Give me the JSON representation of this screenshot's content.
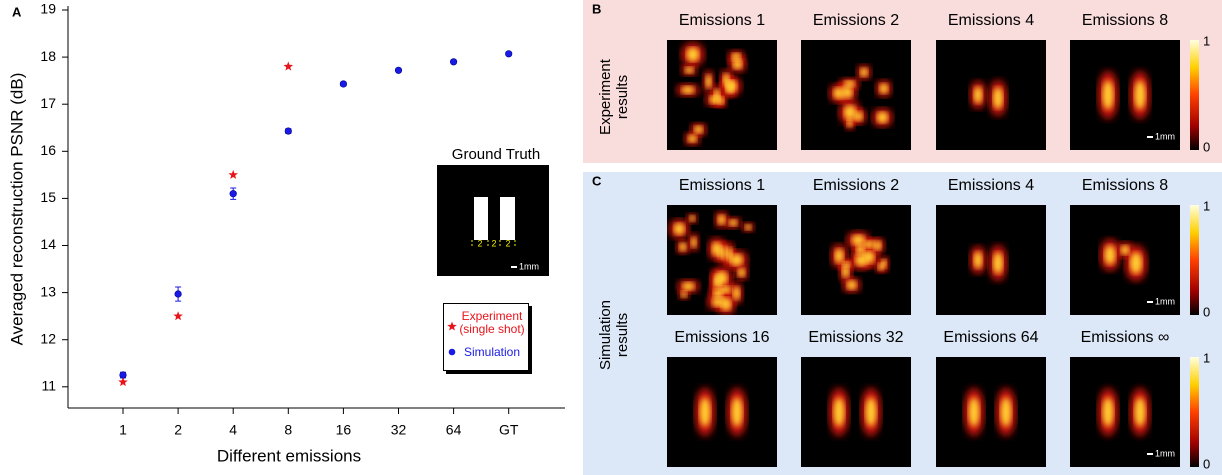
{
  "chart_data": {
    "type": "scatter",
    "x_label": "Different emissions",
    "y_label": "Averaged reconstruction PSNR (dB)",
    "panel_label": "A",
    "categories": [
      "1",
      "2",
      "4",
      "8",
      "16",
      "32",
      "64",
      "GT"
    ],
    "series": [
      {
        "name": "Experiment (single shot)",
        "color": "#e8141b",
        "marker": "star",
        "values": [
          11.1,
          12.5,
          15.5,
          17.8,
          null,
          null,
          null,
          null
        ]
      },
      {
        "name": "Simulation",
        "color": "#1a1ae6",
        "marker": "circle",
        "values": [
          11.25,
          12.97,
          15.1,
          16.43,
          17.43,
          17.72,
          17.9,
          18.07
        ],
        "errors": [
          0.06,
          0.15,
          0.12,
          0.05,
          0.04,
          0.03,
          0.03,
          0.03
        ]
      }
    ],
    "ylim": [
      10.55,
      19
    ],
    "yticks": [
      11,
      12,
      13,
      14,
      15,
      16,
      17,
      18,
      19
    ],
    "inset": {
      "title": "Ground Truth",
      "dimensions": [
        "2",
        "2",
        "2"
      ],
      "scale_label": "1mm"
    }
  },
  "panels": [
    {
      "label": "B",
      "row_label": [
        "Experiment",
        "results"
      ],
      "rows": [
        {
          "titles": [
            "Emissions 1",
            "Emissions 2",
            "Emissions 4",
            "Emissions 8"
          ]
        }
      ],
      "colorbar_ticks": [
        1,
        0
      ],
      "scale_label": "1mm"
    },
    {
      "label": "C",
      "row_label": [
        "Simulation",
        "results"
      ],
      "rows": [
        {
          "titles": [
            "Emissions 1",
            "Emissions 2",
            "Emissions 4",
            "Emissions 8"
          ]
        },
        {
          "titles": [
            "Emissions 16",
            "Emissions 32",
            "Emissions 64",
            "Emissions ∞"
          ]
        }
      ],
      "colorbar_ticks": [
        1,
        0
      ],
      "scale_label": "1mm"
    }
  ]
}
